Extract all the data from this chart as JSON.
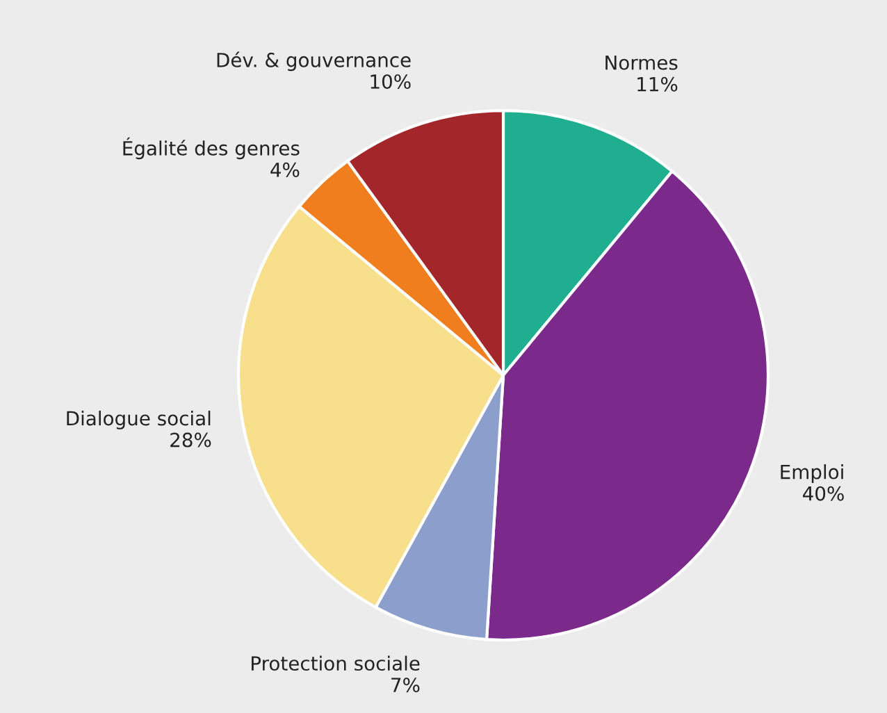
{
  "chart_data": {
    "type": "pie",
    "categories": [
      "Normes",
      "Emploi",
      "Protection sociale",
      "Dialogue social",
      "Égalité des genres",
      "Dév. & gouvernance"
    ],
    "values": [
      11,
      40,
      7,
      28,
      4,
      10
    ],
    "value_labels": [
      "11%",
      "40%",
      "7%",
      "28%",
      "4%",
      "10%"
    ],
    "colors": [
      "#1fae8f",
      "#7b2a8c",
      "#8c9fcc",
      "#f7df8c",
      "#f07d1e",
      "#a3262a"
    ],
    "legend": false
  }
}
